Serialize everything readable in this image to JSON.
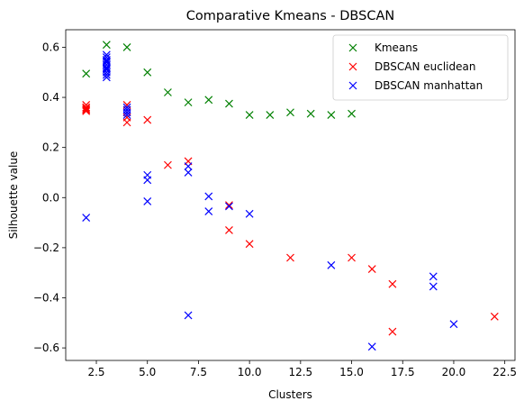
{
  "chart_data": {
    "type": "scatter",
    "title": "Comparative Kmeans - DBSCAN",
    "xlabel": "Clusters",
    "ylabel": "Silhouette value",
    "xlim": [
      1.0,
      23.0
    ],
    "ylim": [
      -0.65,
      0.67
    ],
    "xticks": [
      2.5,
      5.0,
      7.5,
      10.0,
      12.5,
      15.0,
      17.5,
      20.0,
      22.5
    ],
    "xtick_labels": [
      "2.5",
      "5.0",
      "7.5",
      "10.0",
      "12.5",
      "15.0",
      "17.5",
      "20.0",
      "22.5"
    ],
    "yticks": [
      -0.6,
      -0.4,
      -0.2,
      0.0,
      0.2,
      0.4,
      0.6
    ],
    "ytick_labels": [
      "−0.6",
      "−0.4",
      "−0.2",
      "0.0",
      "0.2",
      "0.4",
      "0.6"
    ],
    "marker": "x",
    "grid": false,
    "legend_position": "top-right",
    "series": [
      {
        "name": "Kmeans",
        "color": "#008000",
        "points": [
          [
            2,
            0.495
          ],
          [
            3,
            0.61
          ],
          [
            4,
            0.6
          ],
          [
            5,
            0.5
          ],
          [
            6,
            0.42
          ],
          [
            7,
            0.38
          ],
          [
            8,
            0.39
          ],
          [
            9,
            0.375
          ],
          [
            10,
            0.33
          ],
          [
            11,
            0.33
          ],
          [
            12,
            0.34
          ],
          [
            13,
            0.335
          ],
          [
            14,
            0.33
          ],
          [
            15,
            0.335
          ]
        ]
      },
      {
        "name": "DBSCAN euclidean",
        "color": "#ff0000",
        "points": [
          [
            2,
            0.37
          ],
          [
            2,
            0.36
          ],
          [
            2,
            0.355
          ],
          [
            2,
            0.35
          ],
          [
            2,
            0.345
          ],
          [
            4,
            0.37
          ],
          [
            4,
            0.34
          ],
          [
            4,
            0.32
          ],
          [
            4,
            0.3
          ],
          [
            5,
            0.31
          ],
          [
            6,
            0.13
          ],
          [
            7,
            0.145
          ],
          [
            9,
            -0.13
          ],
          [
            9,
            -0.03
          ],
          [
            10,
            -0.185
          ],
          [
            12,
            -0.24
          ],
          [
            15,
            -0.24
          ],
          [
            16,
            -0.285
          ],
          [
            17,
            -0.345
          ],
          [
            17,
            -0.535
          ],
          [
            22,
            -0.475
          ]
        ]
      },
      {
        "name": "DBSCAN manhattan",
        "color": "#0000ff",
        "points": [
          [
            2,
            -0.08
          ],
          [
            3,
            0.57
          ],
          [
            3,
            0.56
          ],
          [
            3,
            0.55
          ],
          [
            3,
            0.545
          ],
          [
            3,
            0.54
          ],
          [
            3,
            0.53
          ],
          [
            3,
            0.52
          ],
          [
            3,
            0.515
          ],
          [
            3,
            0.51
          ],
          [
            3,
            0.5
          ],
          [
            3,
            0.49
          ],
          [
            3,
            0.48
          ],
          [
            4,
            0.36
          ],
          [
            4,
            0.35
          ],
          [
            4,
            0.34
          ],
          [
            4,
            0.33
          ],
          [
            5,
            0.09
          ],
          [
            5,
            0.07
          ],
          [
            5,
            -0.015
          ],
          [
            7,
            0.125
          ],
          [
            7,
            0.1
          ],
          [
            7,
            -0.47
          ],
          [
            8,
            0.005
          ],
          [
            8,
            -0.055
          ],
          [
            9,
            -0.035
          ],
          [
            10,
            -0.065
          ],
          [
            14,
            -0.27
          ],
          [
            16,
            -0.595
          ],
          [
            19,
            -0.315
          ],
          [
            19,
            -0.355
          ],
          [
            20,
            -0.505
          ]
        ]
      }
    ]
  }
}
